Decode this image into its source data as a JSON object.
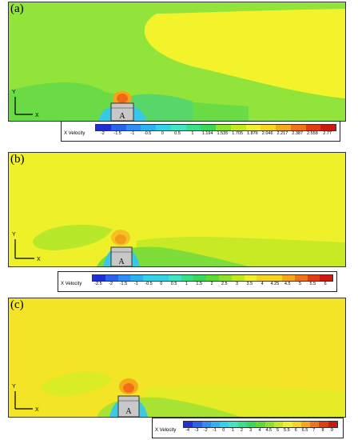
{
  "panels": [
    {
      "label": "(a)",
      "cylinder_label": "A",
      "axis_y": "Y",
      "axis_x": "X"
    },
    {
      "label": "(b)",
      "cylinder_label": "A",
      "axis_y": "Y",
      "axis_x": "X"
    },
    {
      "label": "(c)",
      "cylinder_label": "A",
      "axis_y": "Y",
      "axis_x": "X"
    }
  ],
  "legends": [
    {
      "title": "X Velocity",
      "ticks": [
        "-2",
        "-1.5",
        "-1",
        "-0.5",
        "0",
        "0.5",
        "1",
        "1.194",
        "1.535",
        "1.705",
        "1.876",
        "2.046",
        "2.217",
        "2.387",
        "2.558",
        "2.77"
      ]
    },
    {
      "title": "X Velocity",
      "ticks": [
        "-2.5",
        "-2",
        "-1.5",
        "-1",
        "-0.5",
        "0",
        "0.5",
        "1",
        "1.5",
        "2",
        "2.5",
        "3",
        "3.5",
        "4",
        "4.25",
        "4.5",
        "5",
        "5.5",
        "6"
      ]
    },
    {
      "title": "X Velocity",
      "ticks": [
        "-4",
        "-3",
        "-2",
        "-1",
        "0",
        "1",
        "2",
        "3",
        "4",
        "4.5",
        "5",
        "5.5",
        "6",
        "6.5",
        "7",
        "8",
        "9"
      ]
    }
  ],
  "colors": {
    "ramp": [
      "#1f2fd6",
      "#2a62ef",
      "#2f8ef5",
      "#2bb3f2",
      "#2fd4e6",
      "#3fe6c4",
      "#38e08a",
      "#3ad85a",
      "#5fdc2f",
      "#8fe22a",
      "#c4ea1f",
      "#eef02a",
      "#f7d41e",
      "#f5a81a",
      "#ef7418",
      "#e23d12",
      "#cc1a10"
    ],
    "background_flow": "#f4f52a",
    "green_flow": "#8fe33a",
    "cylinder": "#c8c8c8"
  }
}
